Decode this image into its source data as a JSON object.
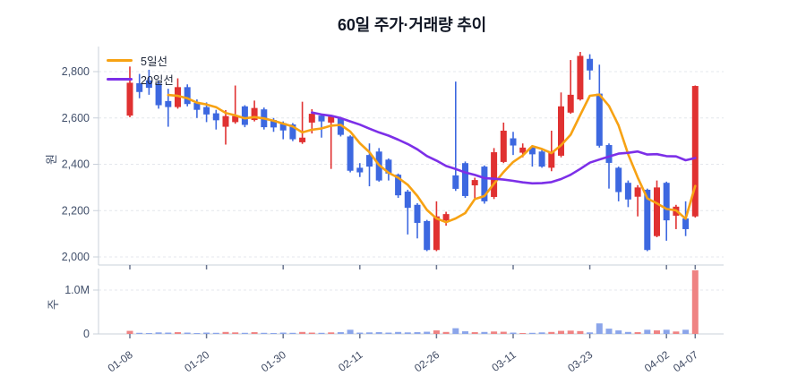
{
  "title": "60일 주가·거래량 추이",
  "legend": {
    "items": [
      {
        "label": "5일선",
        "color": "#f7a213"
      },
      {
        "label": "20일선",
        "color": "#7c2fe8"
      }
    ]
  },
  "price_axis": {
    "label": "원",
    "tick_labels": [
      "2,800",
      "2,600",
      "2,400",
      "2,200",
      "2,000"
    ],
    "tick_values": [
      2800,
      2600,
      2400,
      2200,
      2000
    ]
  },
  "volume_axis": {
    "label": "주",
    "tick_labels": [
      "1.0M",
      "0"
    ],
    "tick_values": [
      1000000,
      0
    ]
  },
  "x_axis": {
    "tick_labels": [
      "01-08",
      "01-20",
      "01-30",
      "02-11",
      "02-26",
      "03-11",
      "03-23",
      "04-02",
      "04-07"
    ],
    "tick_indices": [
      0,
      8,
      16,
      24,
      32,
      40,
      48,
      56,
      59
    ]
  },
  "colors": {
    "up": "#e03131",
    "down": "#3d68e0",
    "vol_up": "#ef8383",
    "vol_down": "#8ba5ea",
    "ma5": "#f7a213",
    "ma20": "#7c2fe8",
    "grid": "#e4e7ec",
    "axis": "#c9d0da",
    "tick_text": "#42506b"
  },
  "chart_data": {
    "type": "candlestick+volume",
    "title": "60일 주가·거래량 추이",
    "ylabel_price": "원",
    "ylabel_volume": "주",
    "price_range": [
      2000,
      2800
    ],
    "volume_gridline": 1000000,
    "grid": "dashed",
    "legend_position": "top-left",
    "series": [
      {
        "name": "5일선",
        "type": "ma",
        "window": 5
      },
      {
        "name": "20일선",
        "type": "ma",
        "window": 20
      }
    ],
    "n_days": 60,
    "candles_ohlc": [
      [
        2610,
        2822,
        2603,
        2752
      ],
      [
        2750,
        2790,
        2685,
        2712
      ],
      [
        2762,
        2808,
        2700,
        2730
      ],
      [
        2748,
        2762,
        2640,
        2655
      ],
      [
        2673,
        2726,
        2562,
        2647
      ],
      [
        2647,
        2771,
        2640,
        2733
      ],
      [
        2733,
        2745,
        2650,
        2660
      ],
      [
        2665,
        2680,
        2600,
        2635
      ],
      [
        2647,
        2667,
        2582,
        2615
      ],
      [
        2620,
        2635,
        2550,
        2590
      ],
      [
        2562,
        2634,
        2485,
        2608
      ],
      [
        2582,
        2740,
        2575,
        2608
      ],
      [
        2650,
        2655,
        2560,
        2570
      ],
      [
        2591,
        2675,
        2585,
        2643
      ],
      [
        2637,
        2645,
        2550,
        2560
      ],
      [
        2591,
        2600,
        2540,
        2559
      ],
      [
        2578,
        2585,
        2508,
        2546
      ],
      [
        2572,
        2578,
        2500,
        2508
      ],
      [
        2495,
        2670,
        2488,
        2515
      ],
      [
        2580,
        2638,
        2533,
        2618
      ],
      [
        2610,
        2618,
        2515,
        2585
      ],
      [
        2580,
        2612,
        2380,
        2606
      ],
      [
        2600,
        2605,
        2520,
        2527
      ],
      [
        2520,
        2525,
        2365,
        2372
      ],
      [
        2385,
        2405,
        2345,
        2365
      ],
      [
        2440,
        2490,
        2305,
        2390
      ],
      [
        2455,
        2470,
        2325,
        2330
      ],
      [
        2420,
        2425,
        2330,
        2360
      ],
      [
        2355,
        2360,
        2255,
        2266
      ],
      [
        2282,
        2290,
        2097,
        2212
      ],
      [
        2225,
        2232,
        2080,
        2147
      ],
      [
        2155,
        2160,
        2025,
        2030
      ],
      [
        2030,
        2240,
        2025,
        2175
      ],
      [
        2158,
        2195,
        2135,
        2185
      ],
      [
        2352,
        2757,
        2285,
        2294
      ],
      [
        2405,
        2412,
        2255,
        2263
      ],
      [
        2309,
        2342,
        2250,
        2332
      ],
      [
        2390,
        2395,
        2230,
        2240
      ],
      [
        2259,
        2470,
        2250,
        2452
      ],
      [
        2410,
        2580,
        2405,
        2545
      ],
      [
        2512,
        2540,
        2440,
        2481
      ],
      [
        2450,
        2490,
        2430,
        2472
      ],
      [
        2472,
        2480,
        2390,
        2443
      ],
      [
        2455,
        2462,
        2385,
        2390
      ],
      [
        2385,
        2545,
        2370,
        2455
      ],
      [
        2437,
        2710,
        2430,
        2650
      ],
      [
        2623,
        2850,
        2618,
        2700
      ],
      [
        2680,
        2885,
        2675,
        2868
      ],
      [
        2855,
        2875,
        2765,
        2805
      ],
      [
        2705,
        2830,
        2472,
        2480
      ],
      [
        2483,
        2490,
        2295,
        2406
      ],
      [
        2385,
        2390,
        2240,
        2280
      ],
      [
        2320,
        2330,
        2215,
        2248
      ],
      [
        2260,
        2310,
        2175,
        2300
      ],
      [
        2290,
        2295,
        2025,
        2030
      ],
      [
        2090,
        2330,
        2085,
        2300
      ],
      [
        2320,
        2325,
        2070,
        2158
      ],
      [
        2178,
        2225,
        2120,
        2217
      ],
      [
        2166,
        2240,
        2090,
        2120
      ],
      [
        2175,
        2740,
        2170,
        2738
      ]
    ],
    "volumes": [
      70000,
      25000,
      20000,
      35000,
      30000,
      40000,
      30000,
      20000,
      30000,
      25000,
      45000,
      35000,
      25000,
      40000,
      25000,
      20000,
      30000,
      25000,
      45000,
      30000,
      25000,
      35000,
      40000,
      95000,
      30000,
      35000,
      40000,
      30000,
      45000,
      35000,
      40000,
      50000,
      80000,
      45000,
      130000,
      60000,
      40000,
      45000,
      55000,
      50000,
      30000,
      20000,
      25000,
      35000,
      45000,
      70000,
      75000,
      65000,
      35000,
      240000,
      120000,
      80000,
      45000,
      40000,
      95000,
      80000,
      95000,
      55000,
      95000,
      1450000
    ]
  }
}
